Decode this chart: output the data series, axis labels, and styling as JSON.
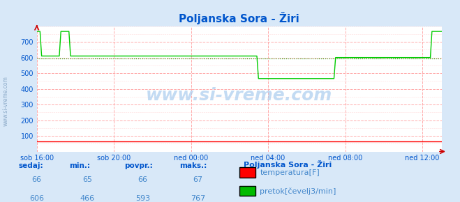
{
  "title": "Poljanska Sora - Žiri",
  "bg_color": "#d8e8f8",
  "plot_bg_color": "#ffffff",
  "grid_color_major": "#ffaaaa",
  "grid_color_minor": "#ffdddd",
  "title_color": "#0055cc",
  "axis_label_color": "#0055cc",
  "tick_label_color": "#0055cc",
  "ylabel_ticks": [
    100,
    200,
    300,
    400,
    500,
    600,
    700
  ],
  "ylim": [
    0,
    800
  ],
  "xlabel_ticks": [
    "sob 16:00",
    "sob 20:00",
    "ned 00:00",
    "ned 04:00",
    "ned 08:00",
    "ned 12:00"
  ],
  "xlabel_tick_positions": [
    0,
    4,
    8,
    12,
    16,
    20
  ],
  "total_hours": 21,
  "temp_color": "#ff0000",
  "flow_color": "#00cc00",
  "avg_color": "#00aa00",
  "temp_value": 66,
  "flow_avg": 593,
  "legend_title": "Poljanska Sora - Žiri",
  "legend_entries": [
    "temperatura[F]",
    "pretok[čevelj3/min]"
  ],
  "legend_colors": [
    "#ff0000",
    "#00bb00"
  ],
  "stats_headers": [
    "sedaj:",
    "min.:",
    "povpr.:",
    "maks.:"
  ],
  "stats_temp": [
    66,
    65,
    66,
    67
  ],
  "stats_flow": [
    606,
    466,
    593,
    767
  ],
  "watermark": "www.si-vreme.com"
}
